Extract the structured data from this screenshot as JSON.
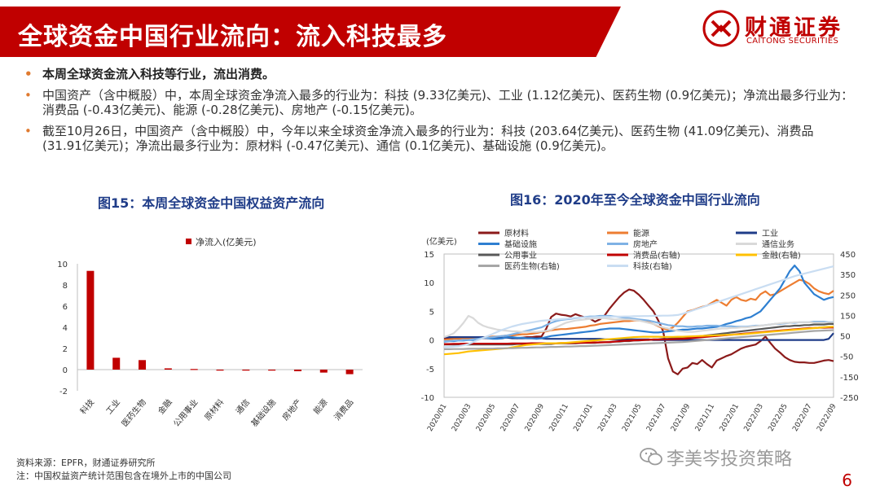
{
  "header": {
    "title": "全球资金中国行业流向：流入科技最多",
    "bar_color": "#c00000"
  },
  "logo": {
    "name_cn": "财通证券",
    "name_en": "CAITONG SECURITIES"
  },
  "bullets": [
    {
      "text": "本周全球资金流入科技等行业，流出消费。",
      "bold": true
    },
    {
      "text": "中国资产（含中概股）中，本周全球资金净流入最多的行业为：科技 (9.33亿美元)、工业 (1.12亿美元)、医药生物 (0.9亿美元)；净流出最多行业为：消费品 (-0.43亿美元)、能源 (-0.28亿美元)、房地产 (-0.15亿美元)。",
      "bold": false
    },
    {
      "text": "截至10月26日，中国资产（含中概股）中，今年以来全球资金净流入最多的行业为：科技 (203.64亿美元)、医药生物 (41.09亿美元)、消费品 (31.91亿美元)；净流出最多行业为：原材料 (-0.47亿美元)、通信 (0.1亿美元)、基础设施 (0.9亿美元)。",
      "bold": false
    }
  ],
  "chart_data": [
    {
      "type": "bar",
      "title": "图15：本周全球资金中国权益资产流向",
      "series": [
        {
          "name": "净流入(亿美元)",
          "color": "#c00000",
          "values": [
            9.33,
            1.12,
            0.9,
            0.12,
            0.06,
            -0.02,
            -0.06,
            -0.08,
            -0.15,
            -0.28,
            -0.43
          ]
        }
      ],
      "categories": [
        "科技",
        "工业",
        "医药生物",
        "金融",
        "公用事业",
        "原材料",
        "通信",
        "基础设施",
        "房地产",
        "能源",
        "消费品"
      ],
      "ylim": [
        -2,
        10
      ],
      "yticks": [
        "-2",
        "0",
        "2",
        "4",
        "6",
        "8",
        "10"
      ],
      "legend_position": "top"
    },
    {
      "type": "line",
      "title": "图16：2020年至今全球资金中国行业流向",
      "yunit_label": "(亿美元)",
      "ylim": [
        -10,
        15
      ],
      "y2lim": [
        -250,
        450
      ],
      "yticks": [
        "-10",
        "-5",
        "0",
        "5",
        "10",
        "15"
      ],
      "y2ticks": [
        "-250",
        "-150",
        "-50",
        "50",
        "150",
        "250",
        "350",
        "450"
      ],
      "xticks": [
        "2020/01",
        "2020/03",
        "2020/05",
        "2020/07",
        "2020/09",
        "2020/11",
        "2021/01",
        "2021/03",
        "2021/05",
        "2021/07",
        "2021/09",
        "2021/11",
        "2022/01",
        "2022/03",
        "2022/05",
        "2022/07",
        "2022/09"
      ],
      "legend_position": "top",
      "series": [
        {
          "name": "原材料",
          "axis": "left",
          "color": "#8b1a1a",
          "values": [
            0.2,
            0.3,
            0.3,
            0.4,
            0.5,
            0.5,
            0.4,
            0.3,
            0.3,
            0.3,
            0.4,
            0.3,
            0.3,
            0.5,
            0.4,
            0.3,
            0.4,
            0.5,
            0.5,
            0.6,
            0.6,
            2.0,
            4.0,
            4.6,
            4.4,
            4.3,
            4.1,
            4.5,
            4.2,
            3.9,
            3.7,
            3.2,
            3.6,
            4.3,
            5.5,
            6.5,
            7.5,
            8.3,
            8.8,
            8.6,
            7.9,
            7.0,
            6.0,
            5.0,
            3.4,
            1.5,
            -3.2,
            -5.5,
            -6.0,
            -5.0,
            -4.8,
            -4.0,
            -4.2,
            -3.5,
            -4.2,
            -4.8,
            -3.6,
            -3.2,
            -2.8,
            -2.5,
            -2.0,
            -1.5,
            -1.2,
            -1.0,
            -0.8,
            -0.2,
            0.6,
            -0.5,
            -1.5,
            -2.2,
            -3.0,
            -3.5,
            -3.8,
            -3.9,
            -3.9,
            -4.0,
            -4.0,
            -3.8,
            -3.6,
            -3.5,
            -3.7
          ]
        },
        {
          "name": "能源",
          "axis": "left",
          "color": "#ed7d31",
          "values": [
            0.0,
            0.1,
            0.2,
            0.2,
            0.3,
            0.3,
            0.4,
            0.4,
            0.5,
            0.5,
            0.6,
            0.6,
            0.7,
            0.8,
            0.8,
            0.9,
            1.0,
            1.0,
            1.1,
            1.2,
            1.4,
            1.5,
            1.7,
            1.8,
            1.9,
            1.9,
            2.0,
            2.1,
            2.2,
            2.3,
            2.5,
            2.6,
            2.8,
            2.9,
            3.0,
            3.1,
            3.2,
            3.3,
            3.3,
            3.4,
            3.4,
            3.3,
            3.1,
            2.8,
            2.4,
            2.0,
            1.8,
            2.2,
            3.0,
            4.0,
            5.0,
            5.2,
            5.5,
            5.8,
            6.0,
            6.5,
            7.0,
            6.5,
            6.0,
            7.0,
            7.5,
            7.0,
            6.8,
            7.2,
            7.0,
            8.0,
            8.5,
            7.8,
            8.0,
            8.5,
            9.0,
            9.5,
            10.0,
            10.5,
            10.3,
            9.8,
            9.0,
            8.5,
            8.2,
            8.0,
            8.6
          ]
        },
        {
          "name": "工业",
          "axis": "left",
          "color": "#1f3c88",
          "values": [
            0.5,
            0.5,
            0.5,
            0.5,
            0.5,
            0.5,
            0.5,
            0.5,
            0.5,
            0.4,
            0.4,
            0.4,
            0.4,
            0.4,
            0.3,
            0.3,
            0.3,
            0.3,
            0.3,
            0.3,
            0.3,
            0.2,
            0.2,
            0.2,
            0.2,
            0.2,
            0.2,
            0.2,
            0.2,
            0.2,
            0.2,
            0.2,
            0.2,
            0.1,
            0.1,
            0.1,
            0.1,
            0.1,
            0.1,
            0.1,
            0.1,
            0.1,
            0.1,
            0.0,
            0.0,
            0.0,
            0.0,
            0.0,
            0.0,
            0.0,
            0.0,
            0.0,
            0.0,
            0.0,
            0.0,
            0.0,
            0.0,
            0.0,
            0.0,
            0.0,
            0.0,
            0.0,
            0.0,
            0.0,
            0.0,
            0.0,
            0.0,
            0.0,
            0.0,
            0.0,
            0.0,
            0.0,
            0.0,
            0.0,
            0.0,
            0.0,
            0.0,
            0.0,
            0.0,
            0.2,
            1.2
          ]
        },
        {
          "name": "基础设施",
          "axis": "left",
          "color": "#2e7fd1",
          "values": [
            -0.3,
            -0.2,
            -0.2,
            -0.1,
            -0.1,
            0.0,
            0.0,
            0.2,
            0.4,
            0.3,
            0.2,
            0.2,
            0.3,
            0.5,
            0.5,
            0.4,
            0.4,
            0.3,
            0.3,
            0.2,
            0.3,
            0.5,
            0.7,
            0.8,
            0.9,
            1.0,
            1.1,
            1.2,
            1.3,
            1.4,
            1.5,
            1.6,
            1.8,
            1.9,
            2.0,
            2.0,
            2.0,
            1.9,
            1.8,
            1.7,
            1.6,
            1.5,
            1.4,
            1.3,
            1.3,
            1.4,
            1.5,
            1.6,
            1.7,
            1.8,
            1.8,
            1.9,
            2.0,
            2.0,
            2.1,
            2.2,
            2.3,
            2.5,
            2.8,
            3.0,
            3.3,
            3.5,
            3.8,
            4.0,
            4.5,
            5.0,
            6.0,
            7.0,
            8.0,
            9.0,
            10.5,
            12.0,
            13.0,
            12.0,
            10.0,
            9.0,
            8.0,
            7.5,
            7.0,
            7.3,
            7.5
          ]
        },
        {
          "name": "房地产",
          "axis": "left",
          "color": "#7fb2e5",
          "values": [
            -0.2,
            -0.2,
            -0.1,
            -0.1,
            0.0,
            0.0,
            0.1,
            0.2,
            0.3,
            0.4,
            0.5,
            0.6,
            0.7,
            0.8,
            1.0,
            1.2,
            1.4,
            1.6,
            1.8,
            2.0,
            2.2,
            2.6,
            3.0,
            3.3,
            3.5,
            3.6,
            3.7,
            3.8,
            3.9,
            4.0,
            4.1,
            4.1,
            4.2,
            4.2,
            4.2,
            4.1,
            4.0,
            3.9,
            3.8,
            3.7,
            3.6,
            3.5,
            3.4,
            3.2,
            3.0,
            2.8,
            2.6,
            2.5,
            2.4,
            2.4,
            2.3,
            2.3,
            2.4,
            2.4,
            2.5,
            2.5,
            2.5,
            2.4,
            2.4,
            2.4,
            2.3,
            2.3,
            2.3,
            2.4,
            2.5,
            2.5,
            2.6,
            2.7,
            2.8,
            2.8,
            2.9,
            3.0,
            3.0,
            3.1,
            3.1,
            3.1,
            3.2,
            3.2,
            3.2,
            3.1,
            3.1
          ]
        },
        {
          "name": "通信业务",
          "axis": "left",
          "color": "#d9d9d9",
          "values": [
            0.5,
            0.8,
            1.2,
            2.0,
            3.0,
            4.2,
            3.8,
            3.0,
            2.5,
            2.2,
            2.0,
            1.8,
            1.7,
            1.6,
            1.5,
            1.5,
            1.4,
            1.4,
            1.4,
            1.4,
            1.5,
            1.6,
            1.8,
            2.2,
            2.6,
            3.0,
            3.2,
            3.4,
            3.5,
            3.6,
            3.7,
            3.8,
            3.8,
            3.8,
            3.7,
            3.6,
            3.6,
            3.6,
            3.6,
            3.5,
            3.4,
            3.2,
            3.0,
            2.8,
            2.5,
            2.2,
            2.0,
            1.8,
            1.6,
            1.5,
            1.4,
            1.4,
            1.5,
            1.6,
            1.7,
            1.8,
            1.9,
            2.0,
            2.0,
            2.1,
            2.1,
            2.2,
            2.2,
            2.3,
            2.4,
            2.5,
            2.6,
            2.7,
            2.8,
            2.9,
            3.0,
            3.0,
            3.1,
            3.1,
            3.1,
            3.1,
            3.0,
            3.0,
            3.0,
            3.0,
            3.0
          ]
        },
        {
          "name": "公用事业",
          "axis": "left",
          "color": "#595959",
          "values": [
            -0.8,
            -0.8,
            -0.8,
            -0.8,
            -0.8,
            -0.8,
            -0.8,
            -0.8,
            -0.8,
            -0.8,
            -0.8,
            -0.8,
            -0.8,
            -0.8,
            -0.8,
            -0.7,
            -0.7,
            -0.7,
            -0.7,
            -0.7,
            -0.7,
            -0.7,
            -0.7,
            -0.6,
            -0.6,
            -0.6,
            -0.6,
            -0.6,
            -0.5,
            -0.5,
            -0.5,
            -0.5,
            -0.4,
            -0.4,
            -0.4,
            -0.3,
            -0.3,
            -0.2,
            -0.2,
            -0.1,
            -0.1,
            0.0,
            0.0,
            0.1,
            0.1,
            0.2,
            0.2,
            0.3,
            0.3,
            0.4,
            0.4,
            0.5,
            0.6,
            0.7,
            0.8,
            0.9,
            1.0,
            1.1,
            1.2,
            1.3,
            1.4,
            1.5,
            1.6,
            1.7,
            1.8,
            1.9,
            2.0,
            2.1,
            2.2,
            2.3,
            2.4,
            2.4,
            2.5,
            2.5,
            2.6,
            2.6,
            2.7,
            2.7,
            2.7,
            2.8,
            2.8
          ]
        },
        {
          "name": "消费品(右轴)",
          "axis": "right",
          "color": "#c00000",
          "values": [
            10,
            10,
            11,
            11,
            12,
            12,
            12,
            12,
            12,
            12,
            12,
            12,
            12,
            12,
            13,
            13,
            13,
            13,
            14,
            14,
            14,
            14,
            14,
            14,
            15,
            15,
            15,
            16,
            16,
            17,
            17,
            18,
            18,
            19,
            20,
            22,
            24,
            26,
            27,
            28,
            29,
            30,
            31,
            32,
            32,
            33,
            33,
            34,
            35,
            36,
            38,
            40,
            42,
            44,
            46,
            48,
            50,
            52,
            54,
            56,
            58,
            60,
            62,
            64,
            66,
            68,
            70,
            72,
            74,
            76,
            78,
            80,
            82,
            84,
            86,
            88,
            89,
            90,
            90,
            91,
            91
          ]
        },
        {
          "name": "金融(右轴)",
          "axis": "right",
          "color": "#ffc000",
          "values": [
            -40,
            -38,
            -36,
            -34,
            -30,
            -26,
            -24,
            -22,
            -20,
            -18,
            -16,
            -14,
            -12,
            -10,
            -6,
            -2,
            2,
            6,
            8,
            10,
            12,
            14,
            14,
            14,
            15,
            16,
            18,
            20,
            22,
            24,
            26,
            28,
            30,
            32,
            34,
            36,
            38,
            40,
            42,
            44,
            45,
            46,
            46,
            46,
            46,
            45,
            45,
            45,
            46,
            46,
            47,
            48,
            49,
            50,
            51,
            52,
            53,
            54,
            55,
            56,
            57,
            58,
            60,
            62,
            64,
            66,
            68,
            70,
            72,
            74,
            76,
            78,
            80,
            82,
            84,
            86,
            88,
            90,
            92,
            94,
            95
          ]
        },
        {
          "name": "医药生物(右轴)",
          "axis": "right",
          "color": "#a6a6a6",
          "values": [
            -15,
            -15,
            -14,
            -14,
            -14,
            -13,
            -13,
            -13,
            -12,
            -12,
            -12,
            -11,
            -11,
            -10,
            -10,
            -9,
            -8,
            -8,
            -7,
            -6,
            -6,
            -5,
            -4,
            -4,
            -3,
            -2,
            -2,
            -1,
            0,
            0,
            1,
            2,
            3,
            4,
            5,
            6,
            7,
            8,
            9,
            10,
            11,
            12,
            13,
            14,
            15,
            16,
            17,
            18,
            19,
            20,
            22,
            24,
            26,
            28,
            30,
            32,
            34,
            36,
            38,
            40,
            42,
            44,
            46,
            48,
            50,
            52,
            54,
            56,
            58,
            60,
            62,
            64,
            66,
            68,
            70,
            72,
            74,
            75,
            76,
            77,
            78
          ]
        },
        {
          "name": "科技(右轴)",
          "axis": "right",
          "color": "#c9ddf2",
          "values": [
            -5,
            -4,
            -2,
            0,
            4,
            10,
            20,
            30,
            40,
            50,
            60,
            70,
            80,
            88,
            96,
            102,
            108,
            112,
            116,
            120,
            124,
            126,
            128,
            130,
            132,
            134,
            136,
            138,
            140,
            140,
            141,
            142,
            142,
            143,
            143,
            144,
            144,
            145,
            145,
            146,
            146,
            147,
            147,
            148,
            148,
            149,
            149,
            150,
            152,
            158,
            166,
            174,
            182,
            190,
            198,
            206,
            214,
            222,
            230,
            238,
            246,
            254,
            262,
            270,
            278,
            286,
            294,
            302,
            310,
            318,
            326,
            334,
            342,
            348,
            354,
            360,
            366,
            372,
            378,
            384,
            390
          ]
        }
      ]
    }
  ],
  "source": {
    "line1": "资料来源：EPFR，财通证券研究所",
    "line2": "注：中国权益资产统计范围包含在境外上市的中国公司"
  },
  "watermark": "李美岑投资策略",
  "page_number": "6"
}
